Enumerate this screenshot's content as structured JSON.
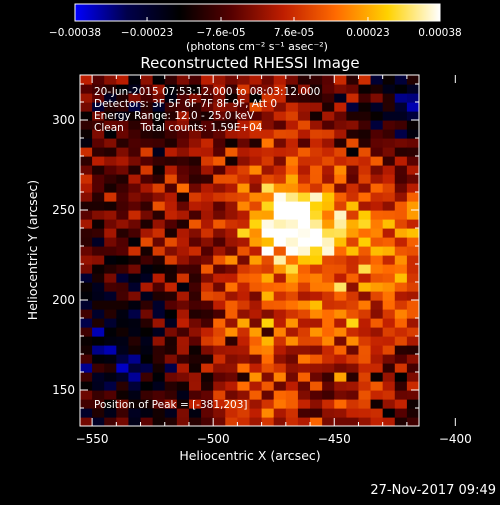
{
  "colorbar": {
    "tick_labels": [
      "-0.00038",
      "-0.00023",
      "-7.6e-05",
      "7.6e-05",
      "0.00023",
      "0.00038"
    ],
    "tick_values": [
      -0.00038,
      -0.00023,
      -7.6e-05,
      7.6e-05,
      0.00023,
      0.00038
    ],
    "unit_label": "(photons cm⁻² s⁻¹ asec⁻²)",
    "range": [
      -0.00038,
      0.00038
    ],
    "colors": [
      "#0000ff",
      "#00004a",
      "#000000",
      "#560000",
      "#bf1e00",
      "#ff6a00",
      "#ffd200",
      "#ffffff"
    ]
  },
  "chart_data": {
    "type": "heatmap",
    "title": "Reconstructed RHESSI Image",
    "xlabel": "Heliocentric X (arcsec)",
    "ylabel": "Heliocentric Y (arcsec)",
    "xlim": [
      -555,
      -415
    ],
    "ylim": [
      130,
      325
    ],
    "x_ticks": [
      -550,
      -500,
      -450,
      -400
    ],
    "y_ticks": [
      150,
      200,
      250,
      300
    ],
    "x_tick_labels": [
      "−550",
      "−500",
      "−450",
      "−400"
    ],
    "y_tick_labels": [
      "150",
      "200",
      "250",
      "300"
    ],
    "annotations": [
      "20-Jun-2015 07:53:12.000 to 08:03:12.000",
      "Detectors: 3F 5F 6F 7F 8F 9F, Att 0",
      "Energy Range: 12.0 - 25.0 keV",
      "Clean     Total counts: 1.59E+04"
    ],
    "peak_label": "Position of Peak = [-381,203]",
    "peak": [
      -381,
      203
    ]
  },
  "timestamp": "27-Nov-2017 09:49"
}
